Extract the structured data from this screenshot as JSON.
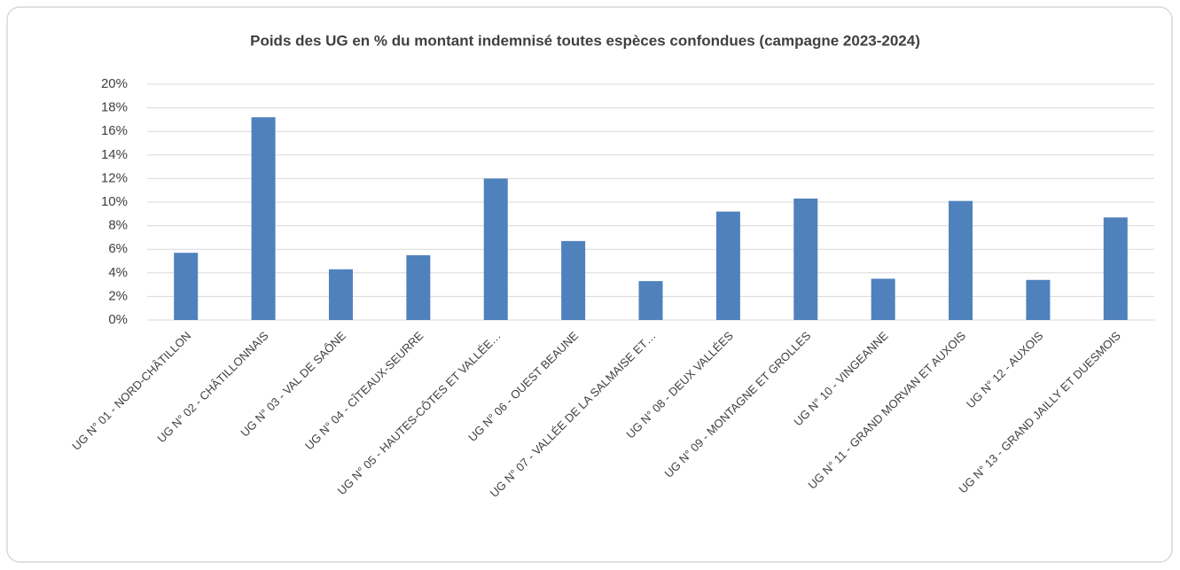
{
  "chart_data": {
    "type": "bar",
    "title": "Poids des UG en % du montant indemnisé toutes espèces confondues (campagne 2023-2024)",
    "categories": [
      "UG N° 01 - NORD-CHÂTILLON",
      "UG N° 02 - CHÂTILLONNAIS",
      "UG N° 03 - VAL DE SAÔNE",
      "UG N° 04 - CÎTEAUX-SEURRE",
      "UG N° 05 - HAUTES-CÔTES ET VALLÉE…",
      "UG N° 06 - OUEST BEAUNE",
      "UG N° 07 - VALLÉE DE LA SALMAISE ET…",
      "UG N° 08 - DEUX VALLÉES",
      "UG N° 09 - MONTAGNE ET GROLLES",
      "UG N° 10 - VINGEANNE",
      "UG N° 11 - GRAND MORVAN ET AUXOIS",
      "UG N° 12 - AUXOIS",
      "UG N° 13 - GRAND JAILLY ET DUESMOIS"
    ],
    "values": [
      5.7,
      17.2,
      4.3,
      5.5,
      12.0,
      6.7,
      3.3,
      9.2,
      10.3,
      3.5,
      10.1,
      3.4,
      8.7
    ],
    "color": "#4f81bd",
    "ylim": [
      0,
      20
    ],
    "yticks": [
      {
        "value": 0,
        "label": "0%"
      },
      {
        "value": 2,
        "label": "2%"
      },
      {
        "value": 4,
        "label": "4%"
      },
      {
        "value": 6,
        "label": "6%"
      },
      {
        "value": 8,
        "label": "8%"
      },
      {
        "value": 10,
        "label": "10%"
      },
      {
        "value": 12,
        "label": "12%"
      },
      {
        "value": 14,
        "label": "14%"
      },
      {
        "value": 16,
        "label": "16%"
      },
      {
        "value": 18,
        "label": "18%"
      },
      {
        "value": 20,
        "label": "20%"
      }
    ],
    "grid": true
  }
}
